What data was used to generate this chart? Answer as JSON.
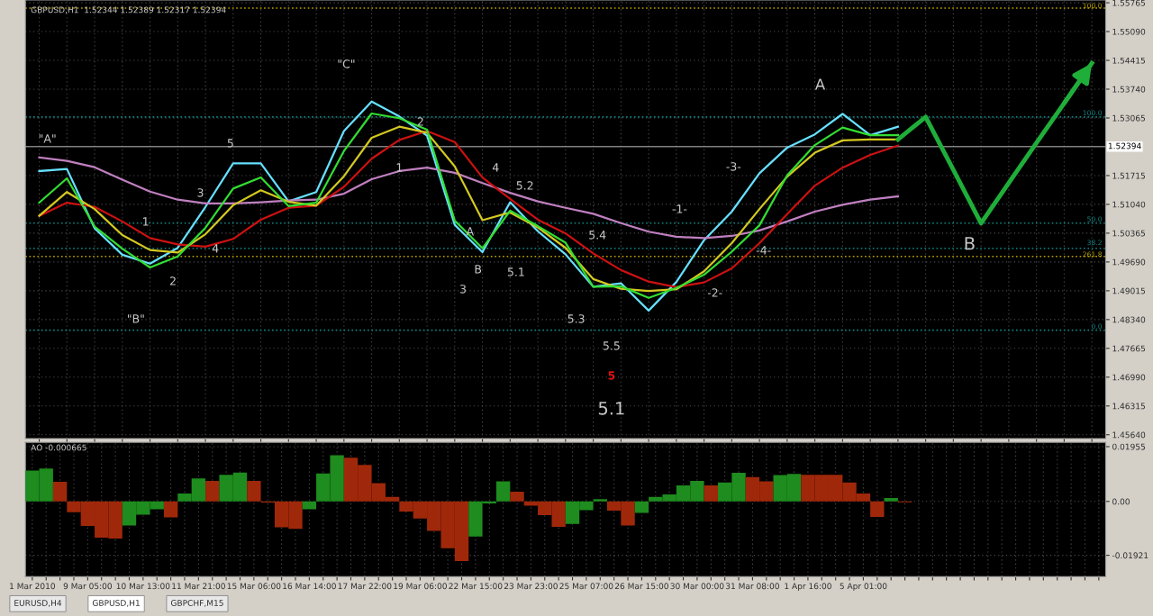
{
  "chart_data": [
    {
      "type": "line",
      "title": "GBPUSD,H1  1.52344 1.52389 1.52317 1.52394",
      "ylim": [
        1.4555,
        1.5583
      ],
      "categories": [
        null,
        null,
        null,
        null,
        null,
        null,
        null,
        null,
        null,
        null,
        null,
        null,
        null,
        null,
        null,
        null,
        null,
        null,
        null,
        null,
        null,
        null,
        null,
        null,
        null,
        null,
        null,
        null,
        null,
        null,
        null,
        null,
        null,
        null,
        null,
        null,
        null,
        null,
        null
      ],
      "yticks": [
        {
          "value": 1.55765,
          "label": "1.55765"
        },
        {
          "value": 1.5509,
          "label": "1.55090"
        },
        {
          "value": 1.54415,
          "label": "1.54415"
        },
        {
          "value": 1.5374,
          "label": "1.53740"
        },
        {
          "value": 1.53065,
          "label": "1.53065"
        },
        {
          "value": 1.51715,
          "label": "1.51715"
        },
        {
          "value": 1.5104,
          "label": "1.51040"
        },
        {
          "value": 1.50365,
          "label": "1.50365"
        },
        {
          "value": 1.4969,
          "label": "1.49690"
        },
        {
          "value": 1.49015,
          "label": "1.49015"
        },
        {
          "value": 1.4834,
          "label": "1.48340"
        },
        {
          "value": 1.47665,
          "label": "1.47665"
        },
        {
          "value": 1.4699,
          "label": "1.46990"
        },
        {
          "value": 1.46315,
          "label": "1.46315"
        },
        {
          "value": 1.4564,
          "label": "1.45640"
        }
      ],
      "tick_labels": "y",
      "grid": true,
      "series": [
        {
          "color": "#66e0ff",
          "values": [
            1.5182,
            1.5187,
            1.5048,
            1.4986,
            1.4965,
            1.5002,
            1.5098,
            1.52,
            1.52,
            1.5111,
            1.5133,
            1.5276,
            1.5345,
            1.531,
            1.5265,
            1.5056,
            1.4992,
            1.5109,
            1.5041,
            1.4987,
            1.4911,
            1.4919,
            1.4855,
            1.4922,
            1.502,
            1.5087,
            1.5177,
            1.5237,
            1.5268,
            1.5316,
            1.5266,
            1.5286,
            null,
            null,
            null,
            null,
            null,
            null,
            null
          ]
        },
        {
          "color": "#c080c0",
          "values": [
            1.5214,
            1.5206,
            1.5191,
            1.5162,
            1.5134,
            1.5115,
            1.5106,
            1.5106,
            1.5109,
            1.5113,
            1.5115,
            1.5129,
            1.5163,
            1.5182,
            1.519,
            1.5178,
            1.5154,
            1.5131,
            1.5111,
            1.5096,
            1.5082,
            1.506,
            1.504,
            1.5028,
            1.5025,
            1.503,
            1.5043,
            1.5064,
            1.5087,
            1.5103,
            1.5115,
            1.5123,
            null,
            null,
            null,
            null,
            null,
            null,
            null
          ]
        },
        {
          "color": "#cc1111",
          "values": [
            1.5077,
            1.5108,
            1.5098,
            1.5064,
            1.5025,
            1.501,
            1.5005,
            1.5023,
            1.5068,
            1.5096,
            1.5101,
            1.5145,
            1.5211,
            1.5255,
            1.5276,
            1.525,
            1.5167,
            1.5117,
            1.5068,
            1.5036,
            1.4989,
            1.495,
            1.4923,
            1.491,
            1.4921,
            1.4954,
            1.5013,
            1.5081,
            1.5148,
            1.519,
            1.522,
            1.5242,
            null,
            null,
            null,
            null,
            null,
            null,
            null
          ]
        },
        {
          "color": "#d4c820",
          "values": [
            1.5077,
            1.5133,
            1.5093,
            1.5032,
            1.4997,
            1.4991,
            1.5034,
            1.5102,
            1.5137,
            1.511,
            1.5101,
            1.517,
            1.526,
            1.5286,
            1.5272,
            1.5193,
            1.5067,
            1.5085,
            1.505,
            1.5002,
            1.4929,
            1.4906,
            1.4901,
            1.4905,
            1.4947,
            1.5013,
            1.5093,
            1.5169,
            1.5225,
            1.5254,
            1.5256,
            1.5256,
            null,
            null,
            null,
            null,
            null,
            null,
            null
          ]
        },
        {
          "color": "#33dd33",
          "values": [
            1.5108,
            1.5165,
            1.5052,
            1.5,
            1.4956,
            1.4982,
            1.5049,
            1.5141,
            1.5167,
            1.51,
            1.5108,
            1.5229,
            1.5317,
            1.5306,
            1.5279,
            1.5066,
            1.5001,
            1.5089,
            1.5053,
            1.5014,
            1.4911,
            1.4912,
            1.4885,
            1.4908,
            1.4939,
            1.4993,
            1.5055,
            1.5172,
            1.5243,
            1.5284,
            1.5266,
            1.5266,
            null,
            null,
            null,
            null,
            null,
            null,
            null
          ]
        },
        {
          "color": "#1fae3a",
          "values": [
            null,
            null,
            null,
            null,
            null,
            null,
            null,
            null,
            null,
            null,
            null,
            null,
            null,
            null,
            null,
            null,
            null,
            null,
            null,
            null,
            null,
            null,
            null,
            null,
            null,
            null,
            null,
            null,
            null,
            null,
            null,
            1.5256,
            1.5309,
            1.5185,
            1.506,
            1.5154,
            1.5248,
            1.5341,
            1.5435
          ]
        }
      ],
      "ref_lines": [
        {
          "axis": "y",
          "value": 1.52394,
          "label": "1.52394",
          "color": "#808080",
          "line_style": "solid"
        },
        {
          "axis": "y",
          "value": 1.5564,
          "color": "#b8a000",
          "line_style": "dotted"
        },
        {
          "axis": "y",
          "value": 1.4982,
          "color": "#b8a000",
          "line_style": "dotted"
        },
        {
          "axis": "y",
          "value": 1.5309,
          "color": "#148080",
          "line_style": "dotted"
        },
        {
          "axis": "y",
          "value": 1.506,
          "color": "#148080",
          "line_style": "dotted"
        },
        {
          "axis": "y",
          "value": 1.5001,
          "color": "#148080",
          "line_style": "dotted"
        },
        {
          "axis": "y",
          "value": 1.4809,
          "color": "#148080",
          "line_style": "dotted"
        }
      ],
      "annotations": [
        "\"A\"",
        "\"B\"",
        "\"C\"",
        "1",
        "2",
        "3",
        "4",
        "5",
        "1",
        "2",
        "A",
        "B",
        "3",
        "4",
        "5.2",
        "5.1",
        "5.4",
        "5.3",
        "5.5",
        "5",
        "5.1",
        "-1-",
        "-2-",
        "-3-",
        "-4-",
        "A",
        "B",
        "100.0",
        "100.0",
        "50.0",
        "38.2",
        "261.8",
        "0.0"
      ]
    },
    {
      "type": "bar",
      "title": "AO -0.000665",
      "ylim": [
        -0.0268,
        0.0211
      ],
      "categories": [
        "1 Mar 2010",
        null,
        null,
        null,
        "9 Mar 05:00",
        null,
        null,
        null,
        "10 Mar 13:00",
        null,
        null,
        null,
        "11 Mar 21:00",
        null,
        null,
        null,
        "15 Mar 06:00",
        null,
        null,
        null,
        "16 Mar 14:00",
        null,
        null,
        null,
        "17 Mar 22:00",
        null,
        null,
        null,
        "19 Mar 06:00",
        null,
        null,
        null,
        "22 Mar 15:00",
        null,
        null,
        null,
        "23 Mar 23:00",
        null,
        null,
        null,
        "25 Mar 07:00",
        null,
        null,
        null,
        "26 Mar 15:00",
        null,
        null,
        null,
        "30 Mar 00:00",
        null,
        null,
        null,
        "31 Mar 08:00",
        null,
        null,
        null,
        "1 Apr 16:00",
        null,
        null,
        null,
        "5 Apr 01:00",
        null,
        null,
        null,
        null,
        null,
        null,
        null,
        null,
        null,
        null,
        null,
        null,
        null,
        null,
        null,
        null,
        null
      ],
      "yticks": [
        {
          "value": 0.01955,
          "label": "0.01955"
        },
        {
          "value": 0,
          "label": "0.00"
        },
        {
          "value": -0.01921,
          "label": "-0.01921"
        }
      ],
      "grid": true,
      "values": [
        0.011,
        0.0117,
        0.007,
        -0.0038,
        -0.0087,
        -0.0129,
        -0.0132,
        -0.0086,
        -0.0047,
        -0.0028,
        -0.0057,
        0.0028,
        0.0082,
        0.0073,
        0.0095,
        0.0103,
        0.0073,
        -0.0004,
        -0.0092,
        -0.0098,
        -0.0028,
        0.01,
        0.0165,
        0.0156,
        0.013,
        0.0065,
        0.0016,
        -0.0036,
        -0.0061,
        -0.0105,
        -0.0167,
        -0.0213,
        -0.0125,
        -0.0007,
        0.0072,
        0.0035,
        -0.0015,
        -0.0049,
        -0.0091,
        -0.008,
        -0.0031,
        0.0008,
        -0.0033,
        -0.0086,
        -0.0041,
        0.0016,
        0.0025,
        0.0057,
        0.0073,
        0.0057,
        0.0068,
        0.0102,
        0.0087,
        0.0072,
        0.0094,
        0.0098,
        0.0095,
        0.0095,
        0.0095,
        0.0068,
        0.0028,
        -0.0055,
        0.0012,
        -0.0003,
        null,
        null,
        null,
        null,
        null,
        null,
        null,
        null,
        null,
        null,
        null,
        null,
        null,
        null
      ],
      "colors": [
        "#1e8c1e",
        "#1e8c1e",
        "#a0280a",
        "#a0280a",
        "#a0280a",
        "#a0280a",
        "#a0280a",
        "#1e8c1e",
        "#1e8c1e",
        "#1e8c1e",
        "#a0280a",
        "#1e8c1e",
        "#1e8c1e",
        "#a0280a",
        "#1e8c1e",
        "#1e8c1e",
        "#a0280a",
        "#a0280a",
        "#a0280a",
        "#a0280a",
        "#1e8c1e",
        "#1e8c1e",
        "#1e8c1e",
        "#a0280a",
        "#a0280a",
        "#a0280a",
        "#a0280a",
        "#a0280a",
        "#a0280a",
        "#a0280a",
        "#a0280a",
        "#a0280a",
        "#1e8c1e",
        "#1e8c1e",
        "#1e8c1e",
        "#a0280a",
        "#a0280a",
        "#a0280a",
        "#a0280a",
        "#1e8c1e",
        "#1e8c1e",
        "#1e8c1e",
        "#a0280a",
        "#a0280a",
        "#1e8c1e",
        "#1e8c1e",
        "#1e8c1e",
        "#1e8c1e",
        "#1e8c1e",
        "#a0280a",
        "#1e8c1e",
        "#1e8c1e",
        "#a0280a",
        "#a0280a",
        "#1e8c1e",
        "#1e8c1e",
        "#a0280a",
        "#a0280a",
        "#a0280a",
        "#a0280a",
        "#a0280a",
        "#a0280a",
        "#1e8c1e",
        "#a0280a",
        "#a0280a",
        "#a0280a",
        "#a0280a",
        "#a0280a",
        "#a0280a",
        "#a0280a",
        "#a0280a",
        "#a0280a",
        "#a0280a",
        "#a0280a",
        "#a0280a",
        "#a0280a",
        "#a0280a",
        "#a0280a"
      ],
      "annotations": [
        "EURUSD,H4",
        "GBPUSD,H1",
        "GBPCHF,M15"
      ]
    }
  ]
}
